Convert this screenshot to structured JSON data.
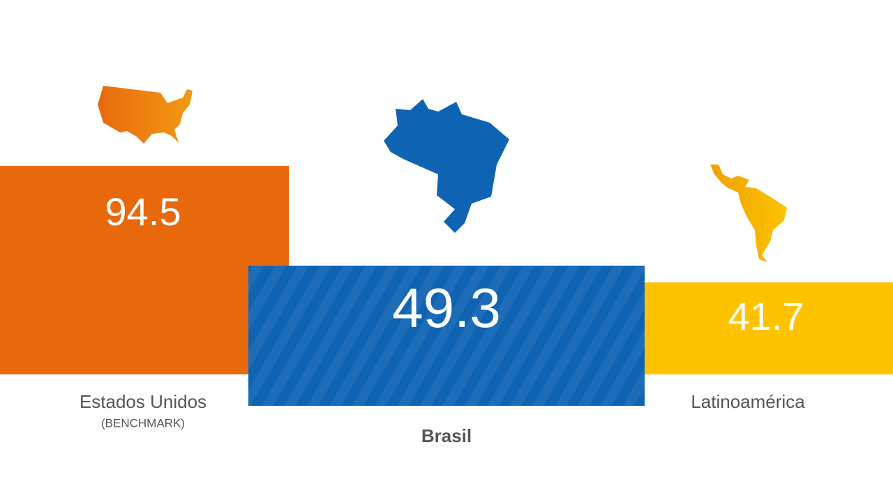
{
  "chart_data": {
    "type": "bar",
    "categories": [
      "Estados Unidos",
      "Brasil",
      "Latinoamérica"
    ],
    "values": [
      94.5,
      49.3,
      41.7
    ],
    "colors": [
      "#e8690c",
      "#0f63b3",
      "#fdc300"
    ],
    "notes": [
      "(BENCHMARK)",
      null,
      null
    ]
  }
}
